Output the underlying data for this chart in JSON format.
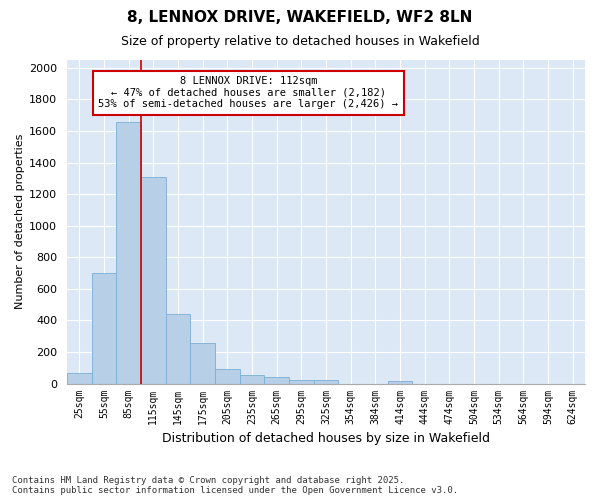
{
  "title_line1": "8, LENNOX DRIVE, WAKEFIELD, WF2 8LN",
  "title_line2": "Size of property relative to detached houses in Wakefield",
  "xlabel": "Distribution of detached houses by size in Wakefield",
  "ylabel": "Number of detached properties",
  "footnote": "Contains HM Land Registry data © Crown copyright and database right 2025.\nContains public sector information licensed under the Open Government Licence v3.0.",
  "annotation_line1": "8 LENNOX DRIVE: 112sqm",
  "annotation_line2": "← 47% of detached houses are smaller (2,182)",
  "annotation_line3": "53% of semi-detached houses are larger (2,426) →",
  "bar_color": "#b8cfe8",
  "bar_edge_color": "#7aaed6",
  "vline_color": "#cc0000",
  "annotation_box_edgecolor": "#cc0000",
  "background_color": "#dce8f5",
  "grid_color": "#ffffff",
  "categories": [
    "25sqm",
    "55sqm",
    "85sqm",
    "115sqm",
    "145sqm",
    "175sqm",
    "205sqm",
    "235sqm",
    "265sqm",
    "295sqm",
    "325sqm",
    "354sqm",
    "384sqm",
    "414sqm",
    "444sqm",
    "474sqm",
    "504sqm",
    "534sqm",
    "564sqm",
    "594sqm",
    "624sqm"
  ],
  "values": [
    65,
    700,
    1660,
    1310,
    440,
    255,
    90,
    55,
    40,
    25,
    22,
    0,
    0,
    14,
    0,
    0,
    0,
    0,
    0,
    0,
    0
  ],
  "ylim": [
    0,
    2050
  ],
  "yticks": [
    0,
    200,
    400,
    600,
    800,
    1000,
    1200,
    1400,
    1600,
    1800,
    2000
  ],
  "vline_x": 3.0,
  "figsize": [
    6.0,
    5.0
  ],
  "dpi": 100
}
